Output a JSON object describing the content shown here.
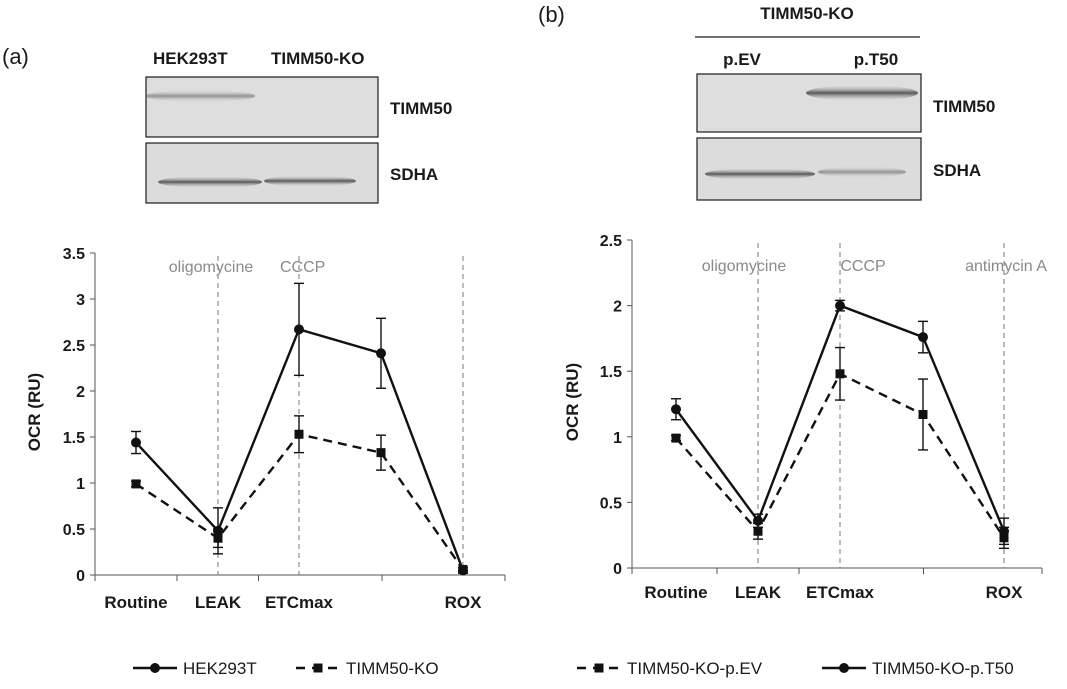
{
  "panels": {
    "a": {
      "label": "(a)",
      "blot": {
        "lanes": [
          "HEK293T",
          "TIMM50-KO"
        ],
        "bands": [
          "TIMM50",
          "SDHA"
        ]
      }
    },
    "b": {
      "label": "(b)",
      "blot": {
        "group": "TIMM50-KO",
        "lanes": [
          "p.EV",
          "p.T50"
        ],
        "bands": [
          "TIMM50",
          "SDHA"
        ]
      }
    }
  },
  "chart_data": [
    {
      "type": "line",
      "panel": "a",
      "title": "",
      "xlabel": "",
      "ylabel": "OCR (RU)",
      "ylim": [
        0,
        3.5
      ],
      "yticks": [
        "0",
        "0.5",
        "1",
        "1.5",
        "2",
        "2.5",
        "3",
        "3.5"
      ],
      "ytick_values": [
        0,
        0.5,
        1,
        1.5,
        2,
        2.5,
        3,
        3.5
      ],
      "categories": [
        "Routine",
        "LEAK",
        "ETCmax",
        "ROX"
      ],
      "x_positions": [
        1,
        2,
        3,
        4,
        5
      ],
      "category_positions": [
        1,
        2,
        3,
        5
      ],
      "annotations": [
        {
          "text": "oligomycine",
          "x": 2
        },
        {
          "text": "CCCP",
          "x": 3
        },
        {
          "text": "",
          "x": 5
        }
      ],
      "series": [
        {
          "name": "HEK293T",
          "marker": "circle",
          "dash": "solid",
          "x": [
            1,
            2,
            3,
            4,
            5
          ],
          "values": [
            1.44,
            0.48,
            2.67,
            2.41,
            0.05
          ],
          "err": [
            0.12,
            0.25,
            0.5,
            0.38,
            0.03
          ]
        },
        {
          "name": "TIMM50-KO",
          "marker": "square",
          "dash": "dashed",
          "x": [
            1,
            2,
            3,
            4,
            5
          ],
          "values": [
            0.99,
            0.4,
            1.53,
            1.33,
            0.06
          ],
          "err": [
            0.03,
            0.1,
            0.2,
            0.19,
            0.02
          ]
        }
      ],
      "legend": {
        "placement": "bottom",
        "entries": [
          "HEK293T",
          "TIMM50-KO"
        ]
      }
    },
    {
      "type": "line",
      "panel": "b",
      "title": "",
      "xlabel": "",
      "ylabel": "OCR (RU)",
      "ylim": [
        0,
        2.5
      ],
      "yticks": [
        "0",
        "0.5",
        "1",
        "1.5",
        "2",
        "2.5"
      ],
      "ytick_values": [
        0,
        0.5,
        1,
        1.5,
        2,
        2.5
      ],
      "categories": [
        "Routine",
        "LEAK",
        "ETCmax",
        "ROX"
      ],
      "x_positions": [
        1,
        2,
        3,
        4,
        5
      ],
      "category_positions": [
        1,
        2,
        3,
        5
      ],
      "annotations": [
        {
          "text": "oligomycine",
          "x": 2
        },
        {
          "text": "CCCP",
          "x": 3
        },
        {
          "text": "antimycin A",
          "x": 5
        }
      ],
      "series": [
        {
          "name": "TIMM50-KO-p.EV",
          "marker": "square",
          "dash": "dashed",
          "x": [
            1,
            2,
            3,
            4,
            5
          ],
          "values": [
            0.99,
            0.28,
            1.48,
            1.17,
            0.23
          ],
          "err": [
            0.02,
            0.06,
            0.2,
            0.27,
            0.08
          ]
        },
        {
          "name": "TIMM50-KO-p.T50",
          "marker": "circle",
          "dash": "solid",
          "x": [
            1,
            2,
            3,
            4,
            5
          ],
          "values": [
            1.21,
            0.36,
            2.0,
            1.76,
            0.28
          ],
          "err": [
            0.08,
            0.05,
            0.04,
            0.12,
            0.1
          ]
        }
      ],
      "legend": {
        "placement": "bottom",
        "entries": [
          "TIMM50-KO-p.EV",
          "TIMM50-KO-p.T50"
        ]
      }
    }
  ]
}
